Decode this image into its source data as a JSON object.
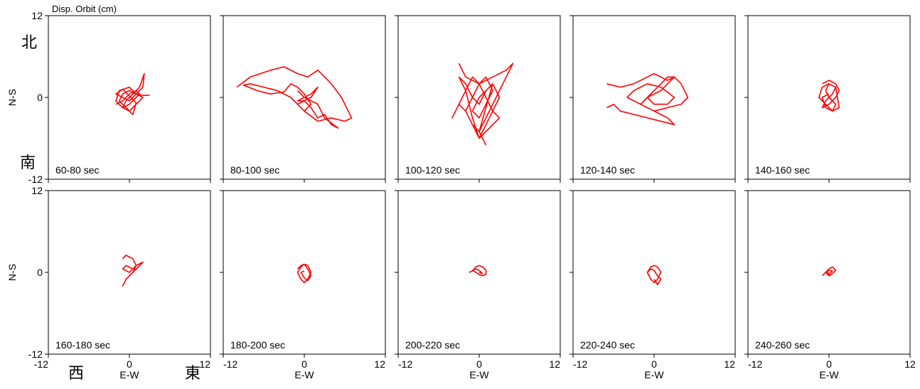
{
  "chart_data": {
    "type": "scatter",
    "title": "Disp. Orbit (cm)",
    "xlabel": "E-W",
    "ylabel": "N-S",
    "xlim": [
      -12,
      12
    ],
    "ylim": [
      -12,
      12
    ],
    "xticks": [
      -12,
      0,
      12
    ],
    "yticks": [
      -12,
      0,
      12
    ],
    "direction_labels": {
      "north": "北",
      "south": "南",
      "west": "西",
      "east": "東"
    },
    "line_color": "#ff0000",
    "grid": false,
    "panels": [
      {
        "label": "60-80 sec",
        "series": [
          {
            "x": [
              -2,
              -1,
              0,
              1,
              1.5,
              1,
              0,
              -1,
              -2,
              -1.5,
              0,
              1,
              2,
              1,
              0,
              -1,
              -0.5,
              0.5,
              1.5,
              2.2,
              2,
              1,
              0,
              -1,
              -2,
              -1,
              0,
              1,
              0.5,
              -0.5,
              -1.5,
              -1,
              0,
              1,
              2,
              3
            ],
            "y": [
              -1,
              -0.5,
              0.5,
              1,
              0.5,
              0,
              -1,
              -1.5,
              -0.5,
              1,
              1.5,
              0.5,
              0,
              -1,
              -2,
              -1.5,
              -0.5,
              0.5,
              1.5,
              3.5,
              1.5,
              0.5,
              -0.5,
              0,
              0.5,
              1.2,
              0.2,
              -0.8,
              -2.5,
              -1.5,
              -0.5,
              0.5,
              1,
              0.5,
              0.3,
              0.3
            ]
          }
        ]
      },
      {
        "label": "80-100 sec",
        "series": [
          {
            "x": [
              -10,
              -8,
              -5,
              -3,
              -1,
              0.5,
              2,
              4,
              5.5,
              7,
              6,
              4,
              2,
              0,
              -2,
              -4,
              -6,
              -8,
              -9,
              -7,
              -5,
              -3,
              -2,
              -1,
              0,
              1,
              0,
              -1,
              1,
              2,
              1,
              -1,
              0,
              1,
              2,
              3,
              4,
              5,
              3,
              2,
              0,
              -1
            ],
            "y": [
              1.5,
              3,
              4,
              4.5,
              3.5,
              3,
              4,
              2,
              0,
              -3,
              -3.5,
              -3,
              -3.5,
              -2,
              0,
              1,
              1.5,
              2,
              1.8,
              1,
              0.5,
              0.8,
              2,
              1.5,
              0.5,
              -1,
              -2,
              -1,
              0,
              1.5,
              0.5,
              -0.5,
              -0.5,
              -1.5,
              -3,
              -2.5,
              -4,
              -4.5,
              -3,
              -1,
              0,
              1
            ]
          }
        ]
      },
      {
        "label": "100-120 sec",
        "series": [
          {
            "x": [
              -3,
              -2,
              0,
              2,
              4,
              5,
              4,
              3,
              2,
              1,
              0,
              -1,
              -2,
              -3,
              -4,
              -3,
              -2,
              -1,
              0,
              1,
              2,
              3,
              2,
              1,
              0,
              -1,
              -2,
              -1,
              0,
              1,
              2,
              1,
              0,
              -1,
              0,
              1,
              2,
              3,
              2,
              1,
              0,
              -1,
              -2,
              -3,
              -2,
              -1,
              0,
              1,
              2,
              0,
              1
            ],
            "y": [
              5,
              3,
              2,
              3,
              4,
              5,
              3,
              1,
              -1,
              -3,
              -5,
              -4,
              -2,
              -1,
              -3,
              -1,
              1,
              3,
              2,
              0,
              -2,
              -3,
              -4,
              -5,
              -6,
              -4,
              -2,
              0,
              2,
              3,
              1,
              -1,
              -3,
              -2,
              0,
              1,
              2,
              0,
              -2,
              -4,
              -6,
              -3,
              1,
              3,
              2,
              0,
              -1,
              1,
              2,
              -5,
              -7
            ]
          }
        ]
      },
      {
        "label": "120-140 sec",
        "series": [
          {
            "x": [
              -7,
              -5,
              -3,
              -1,
              0,
              1,
              2,
              3,
              4,
              5,
              4,
              2,
              0,
              -2,
              -4,
              -3,
              -1,
              1,
              3,
              2,
              0,
              -1,
              0,
              1,
              2,
              3,
              1,
              -1,
              -2,
              0,
              1,
              2,
              3,
              -5,
              -6,
              -7
            ],
            "y": [
              2,
              1.5,
              2,
              3,
              3.5,
              3,
              2.5,
              3,
              2,
              0,
              -1,
              -1.5,
              -2,
              -1,
              0,
              1,
              2,
              1.5,
              0,
              -1,
              -1,
              0,
              1,
              2,
              3,
              3,
              1,
              0,
              -1,
              -2,
              -2.5,
              -3,
              -4,
              -2,
              -1,
              -1.5
            ]
          }
        ]
      },
      {
        "label": "140-160 sec",
        "series": [
          {
            "x": [
              -1,
              0,
              1,
              1.5,
              1,
              0,
              -1,
              -0.5,
              0.5,
              1,
              0,
              -1,
              -1.5,
              -0.5,
              0.5,
              1,
              0,
              -0.5,
              0,
              1,
              1.5,
              0.5,
              -0.5,
              -1,
              0
            ],
            "y": [
              2,
              2.5,
              2,
              1,
              0,
              -1,
              -1.5,
              -0.5,
              0.5,
              1.5,
              2,
              1.5,
              0,
              -1,
              -2,
              -1,
              0,
              1,
              2,
              1.5,
              -1.5,
              -2,
              -1.5,
              0,
              0.5
            ]
          }
        ]
      },
      {
        "label": "160-180 sec",
        "series": [
          {
            "x": [
              -1,
              -0.5,
              0.5,
              1,
              0.5,
              -0.5,
              -1,
              -0.5,
              0.5,
              1.5,
              2,
              1,
              0,
              -1,
              -0.5,
              0.5,
              0
            ],
            "y": [
              2,
              2.5,
              2,
              1,
              0,
              -1,
              -2,
              -1,
              0,
              1,
              1.5,
              1,
              0,
              0.5,
              1,
              0.5,
              0
            ]
          }
        ]
      },
      {
        "label": "180-200 sec",
        "series": [
          {
            "x": [
              -1,
              -0.5,
              0,
              0.5,
              1,
              0.5,
              0,
              -0.5,
              -1,
              -0.5,
              0,
              0.5,
              1,
              0.5,
              0,
              -0.5,
              0
            ],
            "y": [
              0.5,
              1,
              1.2,
              1,
              0,
              -1,
              -1.5,
              -1,
              0,
              0.8,
              1.2,
              0.5,
              -0.5,
              -1.2,
              -0.8,
              0,
              0.2
            ]
          }
        ]
      },
      {
        "label": "200-220 sec",
        "series": [
          {
            "x": [
              -1.5,
              -1,
              -0.5,
              0,
              0.5,
              1,
              1,
              0.5,
              0,
              -0.5,
              -1,
              -0.5,
              0,
              0.5,
              0
            ],
            "y": [
              0,
              0.2,
              0.8,
              1,
              0.8,
              0.3,
              -0.3,
              -0.5,
              -0.3,
              0,
              0.3,
              0.5,
              0.3,
              -0.2,
              0
            ]
          }
        ]
      },
      {
        "label": "220-240 sec",
        "series": [
          {
            "x": [
              -1,
              -0.5,
              0,
              0.5,
              1,
              0.5,
              0,
              -0.5,
              -1,
              -0.5,
              0,
              0.5,
              1,
              0.5,
              0
            ],
            "y": [
              0,
              0.8,
              1,
              0.8,
              0,
              -1,
              -1.5,
              -1,
              0,
              0.5,
              0.3,
              -0.5,
              -1,
              -1.8,
              -1
            ]
          }
        ]
      },
      {
        "label": "240-260 sec",
        "series": [
          {
            "x": [
              -1,
              -0.5,
              0,
              0.5,
              1,
              0.5,
              0,
              -0.5,
              0,
              0.5,
              0,
              -0.5,
              0
            ],
            "y": [
              -0.5,
              0,
              0.5,
              0.8,
              0.3,
              -0.2,
              -0.5,
              0,
              0.3,
              0.2,
              -0.3,
              0,
              0
            ]
          }
        ]
      }
    ]
  }
}
